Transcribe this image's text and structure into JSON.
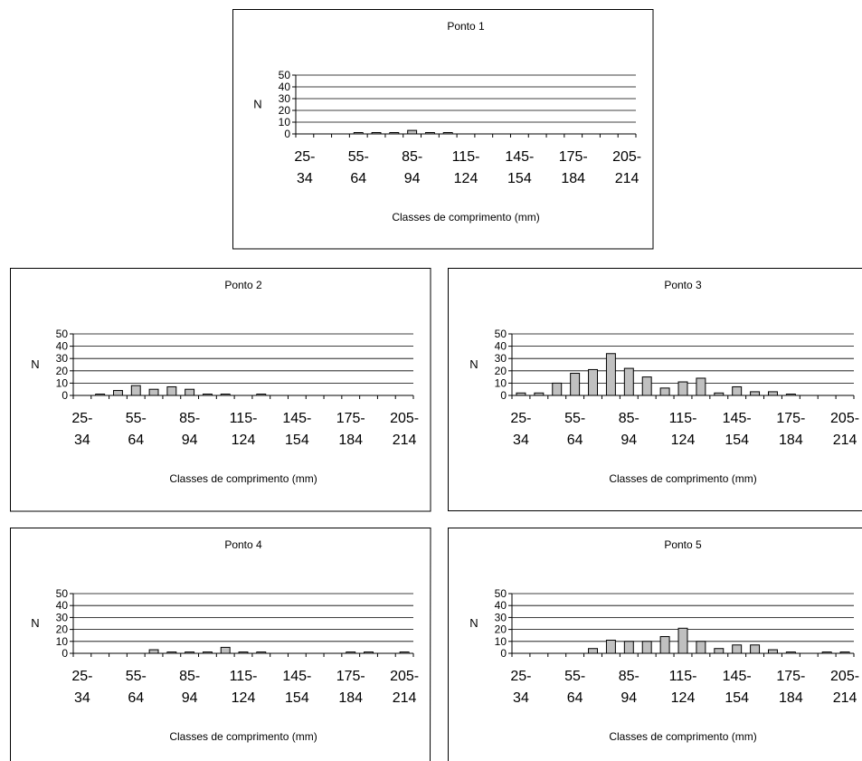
{
  "chart_data": [
    {
      "type": "bar",
      "title": "Ponto 1",
      "xlabel": "Classes de comprimento (mm)",
      "ylabel": "N",
      "ylim": [
        0,
        50
      ],
      "yticks": [
        0,
        10,
        20,
        30,
        40,
        50
      ],
      "grid": true,
      "categories": [
        "25-34",
        "35-44",
        "45-54",
        "55-64",
        "65-74",
        "75-84",
        "85-94",
        "95-104",
        "105-114",
        "115-124",
        "125-134",
        "135-144",
        "145-154",
        "155-164",
        "165-174",
        "175-184",
        "185-194",
        "195-204",
        "205-214"
      ],
      "tick_labels": [
        [
          "25-",
          "34"
        ],
        [
          "55-",
          "64"
        ],
        [
          "85-",
          "94"
        ],
        [
          "115-",
          "124"
        ],
        [
          "145-",
          "154"
        ],
        [
          "175-",
          "184"
        ],
        [
          "205-",
          "214"
        ]
      ],
      "values": [
        0,
        0,
        0,
        1,
        1,
        1,
        3,
        1,
        1,
        0,
        0,
        0,
        0,
        0,
        0,
        0,
        0,
        0,
        0
      ]
    },
    {
      "type": "bar",
      "title": "Ponto 2",
      "xlabel": "Classes de comprimento (mm)",
      "ylabel": "N",
      "ylim": [
        0,
        50
      ],
      "yticks": [
        0,
        10,
        20,
        30,
        40,
        50
      ],
      "grid": true,
      "categories": [
        "25-34",
        "35-44",
        "45-54",
        "55-64",
        "65-74",
        "75-84",
        "85-94",
        "95-104",
        "105-114",
        "115-124",
        "125-134",
        "135-144",
        "145-154",
        "155-164",
        "165-174",
        "175-184",
        "185-194",
        "195-204",
        "205-214"
      ],
      "tick_labels": [
        [
          "25-",
          "34"
        ],
        [
          "55-",
          "64"
        ],
        [
          "85-",
          "94"
        ],
        [
          "115-",
          "124"
        ],
        [
          "145-",
          "154"
        ],
        [
          "175-",
          "184"
        ],
        [
          "205-",
          "214"
        ]
      ],
      "values": [
        0,
        1,
        4,
        8,
        5,
        7,
        5,
        1,
        1,
        0,
        1,
        0,
        0,
        0,
        0,
        0,
        0,
        0,
        0
      ]
    },
    {
      "type": "bar",
      "title": "Ponto 3",
      "xlabel": "Classes de comprimento (mm)",
      "ylabel": "N",
      "ylim": [
        0,
        50
      ],
      "yticks": [
        0,
        10,
        20,
        30,
        40,
        50
      ],
      "grid": true,
      "categories": [
        "25-34",
        "35-44",
        "45-54",
        "55-64",
        "65-74",
        "75-84",
        "85-94",
        "95-104",
        "105-114",
        "115-124",
        "125-134",
        "135-144",
        "145-154",
        "155-164",
        "165-174",
        "175-184",
        "185-194",
        "195-204",
        "205-214"
      ],
      "tick_labels": [
        [
          "25-",
          "34"
        ],
        [
          "55-",
          "64"
        ],
        [
          "85-",
          "94"
        ],
        [
          "115-",
          "124"
        ],
        [
          "145-",
          "154"
        ],
        [
          "175-",
          "184"
        ],
        [
          "205-",
          "214"
        ]
      ],
      "values": [
        2,
        2,
        10,
        18,
        21,
        34,
        22,
        15,
        6,
        11,
        14,
        2,
        7,
        3,
        3,
        1,
        0,
        0,
        0
      ]
    },
    {
      "type": "bar",
      "title": "Ponto 4",
      "xlabel": "Classes de comprimento (mm)",
      "ylabel": "N",
      "ylim": [
        0,
        50
      ],
      "yticks": [
        0,
        10,
        20,
        30,
        40,
        50
      ],
      "grid": true,
      "categories": [
        "25-34",
        "35-44",
        "45-54",
        "55-64",
        "65-74",
        "75-84",
        "85-94",
        "95-104",
        "105-114",
        "115-124",
        "125-134",
        "135-144",
        "145-154",
        "155-164",
        "165-174",
        "175-184",
        "185-194",
        "195-204",
        "205-214"
      ],
      "tick_labels": [
        [
          "25-",
          "34"
        ],
        [
          "55-",
          "64"
        ],
        [
          "85-",
          "94"
        ],
        [
          "115-",
          "124"
        ],
        [
          "145-",
          "154"
        ],
        [
          "175-",
          "184"
        ],
        [
          "205-",
          "214"
        ]
      ],
      "values": [
        0,
        0,
        0,
        0,
        3,
        1,
        1,
        1,
        5,
        1,
        1,
        0,
        0,
        0,
        0,
        1,
        1,
        0,
        1
      ]
    },
    {
      "type": "bar",
      "title": "Ponto 5",
      "xlabel": "Classes de comprimento (mm)",
      "ylabel": "N",
      "ylim": [
        0,
        50
      ],
      "yticks": [
        0,
        10,
        20,
        30,
        40,
        50
      ],
      "grid": true,
      "categories": [
        "25-34",
        "35-44",
        "45-54",
        "55-64",
        "65-74",
        "75-84",
        "85-94",
        "95-104",
        "105-114",
        "115-124",
        "125-134",
        "135-144",
        "145-154",
        "155-164",
        "165-174",
        "175-184",
        "185-194",
        "195-204",
        "205-214"
      ],
      "tick_labels": [
        [
          "25-",
          "34"
        ],
        [
          "55-",
          "64"
        ],
        [
          "85-",
          "94"
        ],
        [
          "115-",
          "124"
        ],
        [
          "145-",
          "154"
        ],
        [
          "175-",
          "184"
        ],
        [
          "205-",
          "214"
        ]
      ],
      "values": [
        0,
        0,
        0,
        0,
        4,
        11,
        10,
        10,
        14,
        21,
        10,
        4,
        7,
        7,
        3,
        1,
        0,
        1,
        1
      ]
    }
  ]
}
